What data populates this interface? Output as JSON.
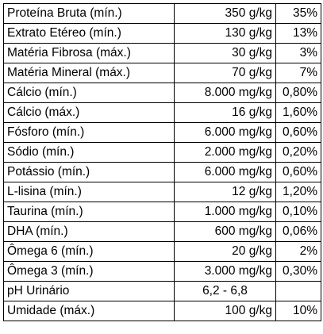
{
  "rows": [
    {
      "name": "Proteína Bruta (mín.)",
      "qty": "350 g/kg",
      "pct": "35%"
    },
    {
      "name": "Extrato Etéreo (mín.)",
      "qty": "130 g/kg",
      "pct": "13%"
    },
    {
      "name": "Matéria Fibrosa (máx.)",
      "qty": "30 g/kg",
      "pct": "3%"
    },
    {
      "name": "Matéria Mineral (máx.)",
      "qty": "70 g/kg",
      "pct": "7%"
    },
    {
      "name": "Cálcio (mín.)",
      "qty": "8.000 mg/kg",
      "pct": "0,80%"
    },
    {
      "name": "Cálcio (máx.)",
      "qty": "16 g/kg",
      "pct": "1,60%"
    },
    {
      "name": "Fósforo (mín.)",
      "qty": "6.000 mg/kg",
      "pct": "0,60%"
    },
    {
      "name": "Sódio (mín.)",
      "qty": "2.000 mg/kg",
      "pct": "0,20%"
    },
    {
      "name": "Potássio (mín.)",
      "qty": "6.000 mg/kg",
      "pct": "0,60%"
    },
    {
      "name": "L-lisina (mín.)",
      "qty": "12 g/kg",
      "pct": "1,20%"
    },
    {
      "name": "Taurina (mín.)",
      "qty": "1.000 mg/kg",
      "pct": "0,10%"
    },
    {
      "name": "DHA (mín.)",
      "qty": "600 mg/kg",
      "pct": "0,06%"
    },
    {
      "name": "Ômega 6 (mín.)",
      "qty": "20 g/kg",
      "pct": "2%"
    },
    {
      "name": "Ômega 3 (mín.)",
      "qty": "3.000 mg/kg",
      "pct": "0,30%"
    },
    {
      "name": "pH Urinário",
      "qty": "6,2 - 6,8",
      "pct": ""
    },
    {
      "name": "Umidade (máx.)",
      "qty": "100 g/kg",
      "pct": "10%"
    }
  ]
}
